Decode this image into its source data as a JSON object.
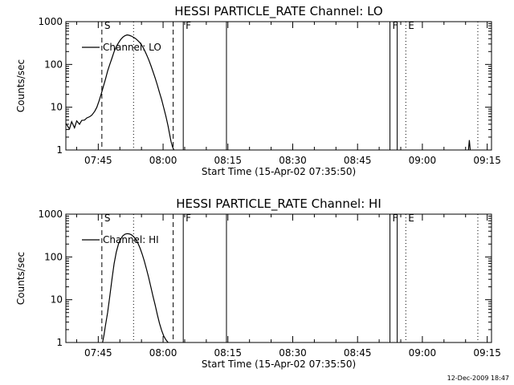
{
  "footer": {
    "stamp": "12-Dec-2009 18:47"
  },
  "chart_data": [
    {
      "type": "line",
      "title": "HESSI PARTICLE_RATE Channel: LO",
      "xlabel": "Start Time (15-Apr-02 07:35:50)",
      "ylabel": "Counts/sec",
      "yscale": "log",
      "ylim": [
        1,
        1000
      ],
      "xlim": [
        "07:37:30",
        "09:16:00"
      ],
      "xticks": [
        "07:45",
        "08:00",
        "08:15",
        "08:30",
        "08:45",
        "09:00",
        "09:15"
      ],
      "yticks": [
        "1",
        "10",
        "100",
        "1000"
      ],
      "legend": {
        "position": "top-left",
        "entries": [
          "Channel: LO"
        ]
      },
      "series": [
        {
          "name": "Channel: LO",
          "x": [
            "07:37:30",
            "07:38:20",
            "07:38:50",
            "07:39:30",
            "07:40:00",
            "07:40:40",
            "07:41:10",
            "07:41:50",
            "07:42:20",
            "07:43:00",
            "07:43:30",
            "07:44:10",
            "07:44:40",
            "07:45:10",
            "07:45:40",
            "07:46:10",
            "07:46:40",
            "07:47:10",
            "07:47:40",
            "07:48:10",
            "07:48:40",
            "07:49:10",
            "07:49:40",
            "07:50:10",
            "07:50:40",
            "07:51:10",
            "07:51:40",
            "07:52:10",
            "07:52:40",
            "07:53:10",
            "07:53:40",
            "07:54:10",
            "07:54:40",
            "07:55:10",
            "07:55:40",
            "07:56:10",
            "07:56:40",
            "07:57:10",
            "07:57:40",
            "07:58:10",
            "07:58:40",
            "07:59:10",
            "07:59:40",
            "08:00:10",
            "08:00:40",
            "08:01:10",
            "08:01:30",
            "08:01:50",
            "08:02:10",
            "08:02:30"
          ],
          "y": [
            4.2,
            3.1,
            4.6,
            3.3,
            4.8,
            4.0,
            4.9,
            5.0,
            5.6,
            6.0,
            6.5,
            8.0,
            10,
            14,
            20,
            30,
            45,
            70,
            100,
            140,
            200,
            260,
            320,
            380,
            430,
            470,
            490,
            480,
            460,
            430,
            400,
            360,
            320,
            270,
            220,
            170,
            130,
            95,
            68,
            48,
            33,
            22,
            15,
            9.5,
            6.0,
            3.6,
            2.4,
            1.6,
            1.2,
            1.0
          ]
        },
        {
          "name": "",
          "x": [
            "09:10:40",
            "09:10:52",
            "09:11:04"
          ],
          "y": [
            1.0,
            1.7,
            1.0
          ]
        }
      ],
      "annotations": [
        {
          "x": "07:45:50",
          "style": "dashed",
          "label": "S"
        },
        {
          "x": "07:53:10",
          "style": "dotted",
          "label": ""
        },
        {
          "x": "08:02:20",
          "style": "dashed",
          "label": ""
        },
        {
          "x": "08:04:40",
          "style": "solid",
          "label": "F"
        },
        {
          "x": "08:14:40",
          "style": "solid",
          "label": ""
        },
        {
          "x": "08:52:30",
          "style": "solid",
          "label": "F"
        },
        {
          "x": "08:54:10",
          "style": "solid",
          "label": ""
        },
        {
          "x": "08:56:10",
          "style": "dotted",
          "label": "E"
        },
        {
          "x": "09:12:50",
          "style": "dotted",
          "label": ""
        }
      ]
    },
    {
      "type": "line",
      "title": "HESSI PARTICLE_RATE Channel: HI",
      "xlabel": "Start Time (15-Apr-02 07:35:50)",
      "ylabel": "Counts/sec",
      "yscale": "log",
      "ylim": [
        1,
        1000
      ],
      "xlim": [
        "07:37:30",
        "09:16:00"
      ],
      "xticks": [
        "07:45",
        "08:00",
        "08:15",
        "08:30",
        "08:45",
        "09:00",
        "09:15"
      ],
      "yticks": [
        "1",
        "10",
        "100",
        "1000"
      ],
      "legend": {
        "position": "top-left",
        "entries": [
          "Channel: HI"
        ]
      },
      "series": [
        {
          "name": "Channel: HI",
          "x": [
            "07:46:00",
            "07:46:20",
            "07:46:40",
            "07:47:10",
            "07:47:40",
            "07:48:10",
            "07:48:40",
            "07:49:10",
            "07:49:40",
            "07:50:10",
            "07:50:40",
            "07:51:10",
            "07:51:40",
            "07:52:10",
            "07:52:40",
            "07:53:10",
            "07:53:40",
            "07:54:10",
            "07:54:40",
            "07:55:10",
            "07:55:40",
            "07:56:10",
            "07:56:40",
            "07:57:10",
            "07:57:40",
            "07:58:10",
            "07:58:40",
            "07:59:10",
            "07:59:40",
            "08:00:10",
            "08:00:40",
            "08:01:10"
          ],
          "y": [
            1.0,
            1.5,
            2.5,
            5,
            12,
            30,
            70,
            130,
            200,
            260,
            310,
            340,
            350,
            345,
            330,
            300,
            260,
            210,
            160,
            115,
            80,
            52,
            33,
            20,
            12,
            7.5,
            4.5,
            2.8,
            1.9,
            1.4,
            1.15,
            1.0
          ]
        }
      ],
      "annotations": [
        {
          "x": "07:45:50",
          "style": "dashed",
          "label": "S"
        },
        {
          "x": "07:53:10",
          "style": "dotted",
          "label": ""
        },
        {
          "x": "08:02:20",
          "style": "dashed",
          "label": ""
        },
        {
          "x": "08:04:40",
          "style": "solid",
          "label": "F"
        },
        {
          "x": "08:14:40",
          "style": "solid",
          "label": ""
        },
        {
          "x": "08:52:30",
          "style": "solid",
          "label": "F"
        },
        {
          "x": "08:54:10",
          "style": "solid",
          "label": ""
        },
        {
          "x": "08:56:10",
          "style": "dotted",
          "label": "E"
        },
        {
          "x": "09:12:50",
          "style": "dotted",
          "label": ""
        }
      ]
    }
  ]
}
